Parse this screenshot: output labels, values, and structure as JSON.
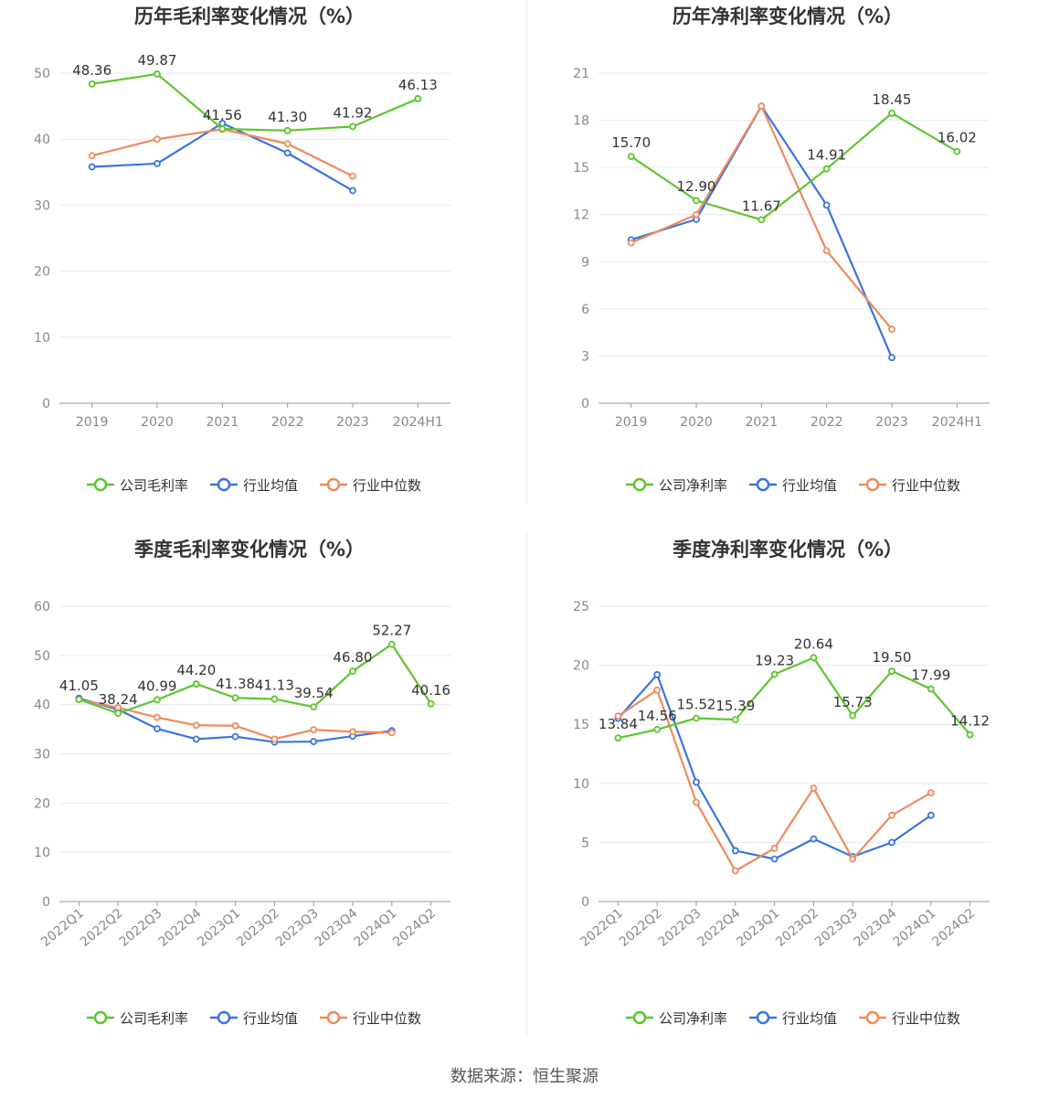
{
  "footer": {
    "source": "数据来源：恒生聚源"
  },
  "colors": {
    "company": "#5ec52f",
    "avg": "#3a74e0",
    "median": "#f08a5d",
    "grid": "#e6e9f0",
    "axis": "#888888"
  },
  "chart_data": [
    {
      "type": "line",
      "title": "历年毛利率变化情况（%）",
      "categories": [
        "2019",
        "2020",
        "2021",
        "2022",
        "2023",
        "2024H1"
      ],
      "ylim": [
        0,
        50
      ],
      "yticks": [
        0,
        10,
        20,
        30,
        40,
        50
      ],
      "grid": true,
      "legend": "bottom",
      "series": [
        {
          "name": "公司毛利率",
          "key": "company",
          "values": [
            48.36,
            49.87,
            41.56,
            41.3,
            41.92,
            46.13
          ],
          "labels": [
            "48.36",
            "49.87",
            "41.56",
            "41.30",
            "41.92",
            "46.13"
          ]
        },
        {
          "name": "行业均值",
          "key": "avg",
          "values": [
            35.8,
            36.3,
            42.4,
            37.9,
            32.2,
            null
          ]
        },
        {
          "name": "行业中位数",
          "key": "median",
          "values": [
            37.5,
            40.0,
            41.5,
            39.3,
            34.4,
            null
          ]
        }
      ]
    },
    {
      "type": "line",
      "title": "历年净利率变化情况（%）",
      "categories": [
        "2019",
        "2020",
        "2021",
        "2022",
        "2023",
        "2024H1"
      ],
      "ylim": [
        0,
        21
      ],
      "yticks": [
        0,
        3,
        6,
        9,
        12,
        15,
        18,
        21
      ],
      "grid": true,
      "legend": "bottom",
      "series": [
        {
          "name": "公司净利率",
          "key": "company",
          "values": [
            15.7,
            12.9,
            11.67,
            14.91,
            18.45,
            16.02
          ],
          "labels": [
            "15.70",
            "12.90",
            "11.67",
            "14.91",
            "18.45",
            "16.02"
          ]
        },
        {
          "name": "行业均值",
          "key": "avg",
          "values": [
            10.4,
            11.7,
            18.9,
            12.6,
            2.9,
            null
          ]
        },
        {
          "name": "行业中位数",
          "key": "median",
          "values": [
            10.2,
            12.0,
            18.9,
            9.7,
            4.7,
            null
          ]
        }
      ]
    },
    {
      "type": "line",
      "title": "季度毛利率变化情况（%）",
      "categories": [
        "2022Q1",
        "2022Q2",
        "2022Q3",
        "2022Q4",
        "2023Q1",
        "2023Q2",
        "2023Q3",
        "2023Q4",
        "2024Q1",
        "2024Q2"
      ],
      "ylim": [
        0,
        60
      ],
      "yticks": [
        0,
        10,
        20,
        30,
        40,
        50,
        60
      ],
      "grid": true,
      "legend": "bottom",
      "series": [
        {
          "name": "公司毛利率",
          "key": "company",
          "values": [
            41.05,
            38.24,
            40.99,
            44.2,
            41.38,
            41.13,
            39.54,
            46.8,
            52.27,
            40.16
          ],
          "labels": [
            "41.05",
            "38.24",
            "40.99",
            "44.20",
            "41.38",
            "41.13",
            "39.54",
            "46.80",
            "52.27",
            "40.16"
          ]
        },
        {
          "name": "行业均值",
          "key": "avg",
          "values": [
            41.3,
            39.0,
            35.1,
            33.0,
            33.5,
            32.4,
            32.5,
            33.6,
            34.7,
            null
          ]
        },
        {
          "name": "行业中位数",
          "key": "median",
          "values": [
            41.0,
            39.4,
            37.4,
            35.8,
            35.7,
            33.0,
            34.9,
            34.5,
            34.3,
            null
          ]
        }
      ]
    },
    {
      "type": "line",
      "title": "季度净利率变化情况（%）",
      "categories": [
        "2022Q1",
        "2022Q2",
        "2022Q3",
        "2022Q4",
        "2023Q1",
        "2023Q2",
        "2023Q3",
        "2023Q4",
        "2024Q1",
        "2024Q2"
      ],
      "ylim": [
        0,
        25
      ],
      "yticks": [
        0,
        5,
        10,
        15,
        20,
        25
      ],
      "grid": true,
      "legend": "bottom",
      "series": [
        {
          "name": "公司净利率",
          "key": "company",
          "values": [
            13.84,
            14.56,
            15.52,
            15.39,
            19.23,
            20.64,
            15.73,
            19.5,
            17.99,
            14.12
          ],
          "labels": [
            "13.84",
            "14.56",
            "15.52",
            "15.39",
            "19.23",
            "20.64",
            "15.73",
            "19.50",
            "17.99",
            "14.12"
          ]
        },
        {
          "name": "行业均值",
          "key": "avg",
          "values": [
            15.5,
            19.2,
            10.1,
            4.3,
            3.6,
            5.3,
            3.8,
            5.0,
            7.3,
            null
          ]
        },
        {
          "name": "行业中位数",
          "key": "median",
          "values": [
            15.7,
            17.9,
            8.4,
            2.6,
            4.5,
            9.6,
            3.6,
            7.3,
            9.2,
            null
          ]
        }
      ]
    }
  ]
}
